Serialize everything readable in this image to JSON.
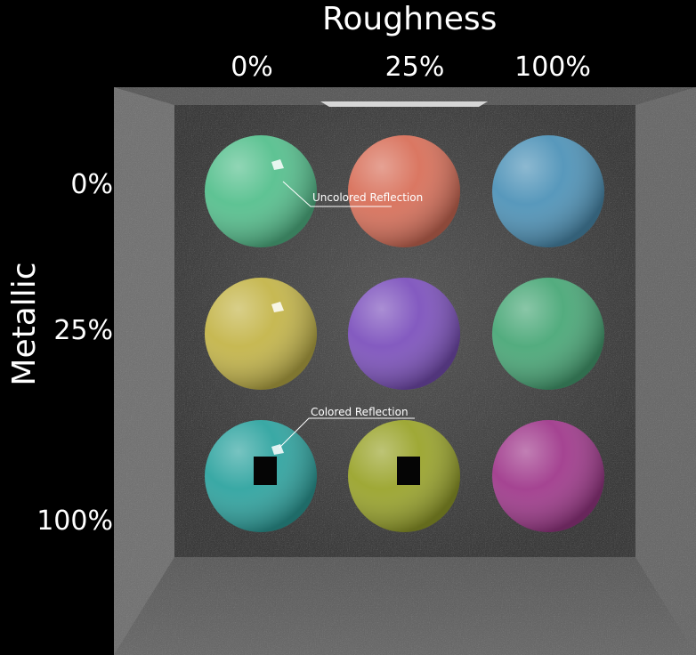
{
  "header": {
    "title": "Roughness",
    "columns": [
      "0%",
      "25%",
      "100%"
    ]
  },
  "side": {
    "title": "Metallic",
    "rows": [
      "0%",
      "25%",
      "100%"
    ]
  },
  "annotations": {
    "uncolored": "Uncolored Reflection",
    "colored": "Colored Reflection"
  },
  "spheres": [
    {
      "metallic": "0%",
      "roughness": "0%",
      "color": "#56c08e"
    },
    {
      "metallic": "0%",
      "roughness": "25%",
      "color": "#d8705a"
    },
    {
      "metallic": "0%",
      "roughness": "100%",
      "color": "#4f93b8"
    },
    {
      "metallic": "25%",
      "roughness": "0%",
      "color": "#c4b54a"
    },
    {
      "metallic": "25%",
      "roughness": "25%",
      "color": "#7d52bd"
    },
    {
      "metallic": "25%",
      "roughness": "100%",
      "color": "#4aa878"
    },
    {
      "metallic": "100%",
      "roughness": "0%",
      "color": "#2fa4a0"
    },
    {
      "metallic": "100%",
      "roughness": "25%",
      "color": "#9aa42c"
    },
    {
      "metallic": "100%",
      "roughness": "100%",
      "color": "#a03a8c"
    }
  ],
  "colors": {
    "background": "#000000",
    "box_wall": "#6f6f6f",
    "box_back": "#4a4a4a",
    "text": "#ffffff"
  }
}
